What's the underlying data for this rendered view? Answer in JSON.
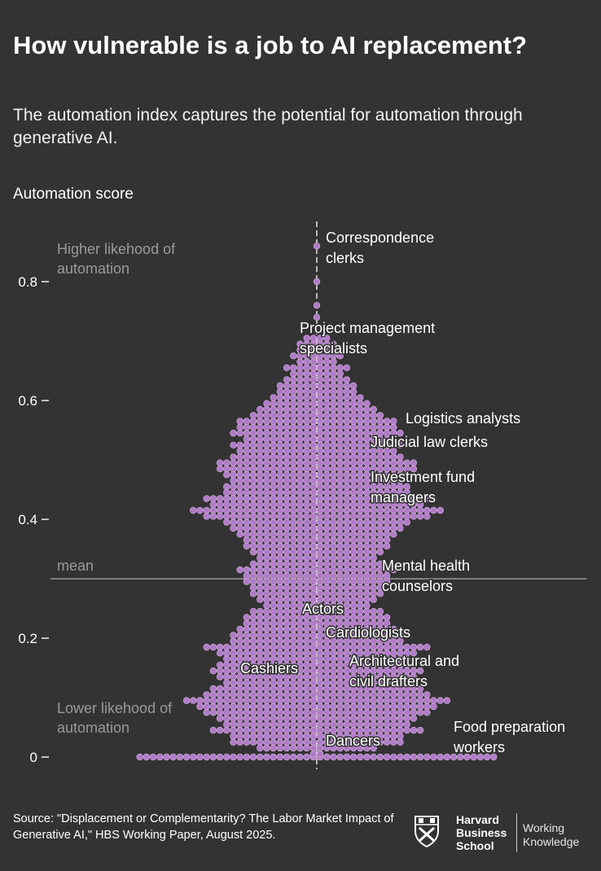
{
  "title": "How vulnerable is a job to AI replacement?",
  "subtitle": "The automation index captures the potential for automation through generative AI.",
  "source": "Source: \"Displacement or Complementarity? The Labor Market Impact of Generative AI,\" HBS Working Paper, August 2025.",
  "logo": {
    "line1": "Harvard",
    "line2": "Business",
    "line3": "School",
    "wk1": "Working",
    "wk2": "Knowledge"
  },
  "colors": {
    "background": "#333333",
    "dot": "#b07cc6",
    "dot_stroke": "#d4aee3",
    "mean_line": "#9a9a9a",
    "annotation_muted": "#9a9a9a"
  },
  "chart_data": {
    "type": "beeswarm",
    "ylabel": "Automation score",
    "ylim": [
      0,
      0.9
    ],
    "yticks": [
      {
        "value": 0,
        "label": "0"
      },
      {
        "value": 0.2,
        "label": "0.2"
      },
      {
        "value": 0.4,
        "label": "0.4"
      },
      {
        "value": 0.6,
        "label": "0.6"
      },
      {
        "value": 0.8,
        "label": "0.8"
      }
    ],
    "mean": {
      "value": 0.3,
      "label": "mean"
    },
    "zones": {
      "high": "Higher likehood of automation",
      "low": "Lower likehood of automation"
    },
    "density_levels": [
      0,
      0.005,
      0.015,
      0.025,
      0.035,
      0.045,
      0.055,
      0.065,
      0.075,
      0.085,
      0.095,
      0.105,
      0.115,
      0.125,
      0.135,
      0.145,
      0.155,
      0.165,
      0.175,
      0.185,
      0.195,
      0.205,
      0.215,
      0.225,
      0.235,
      0.245,
      0.255,
      0.265,
      0.275,
      0.285,
      0.295,
      0.305,
      0.315,
      0.325,
      0.335,
      0.345,
      0.355,
      0.365,
      0.375,
      0.385,
      0.395,
      0.405,
      0.415,
      0.425,
      0.435,
      0.445,
      0.455,
      0.465,
      0.475,
      0.485,
      0.495,
      0.505,
      0.515,
      0.525,
      0.535,
      0.545,
      0.555,
      0.565,
      0.575,
      0.585,
      0.595,
      0.605,
      0.615,
      0.625,
      0.635,
      0.645,
      0.655,
      0.665,
      0.675,
      0.685,
      0.695,
      0.705,
      0.74,
      0.76,
      0.8,
      0.86
    ],
    "density_counts": [
      54,
      2,
      18,
      26,
      26,
      32,
      28,
      30,
      34,
      36,
      40,
      34,
      32,
      28,
      30,
      32,
      30,
      28,
      30,
      34,
      26,
      26,
      24,
      22,
      22,
      20,
      16,
      18,
      20,
      20,
      22,
      22,
      24,
      20,
      18,
      20,
      22,
      22,
      24,
      26,
      28,
      34,
      38,
      32,
      34,
      28,
      28,
      26,
      28,
      30,
      30,
      26,
      24,
      26,
      22,
      26,
      24,
      24,
      20,
      18,
      16,
      14,
      12,
      12,
      10,
      8,
      10,
      6,
      8,
      6,
      6,
      4,
      1,
      1,
      1,
      1
    ],
    "annotations": [
      {
        "label": "Correspondence clerks",
        "y": 0.86
      },
      {
        "label": "Project management specialists",
        "y": 0.7
      },
      {
        "label": "Logistics analysts",
        "y": 0.57
      },
      {
        "label": "Judicial law clerks",
        "y": 0.53
      },
      {
        "label": "Investment fund managers",
        "y": 0.44
      },
      {
        "label": "Mental health counselors",
        "y": 0.3
      },
      {
        "label": "Actors",
        "y": 0.25
      },
      {
        "label": "Cardiologists",
        "y": 0.21
      },
      {
        "label": "Architectural and civil drafters",
        "y": 0.15
      },
      {
        "label": "Cashiers",
        "y": 0.15
      },
      {
        "label": "Food preparation workers",
        "y": 0.03
      },
      {
        "label": "Dancers",
        "y": 0.03
      }
    ]
  }
}
